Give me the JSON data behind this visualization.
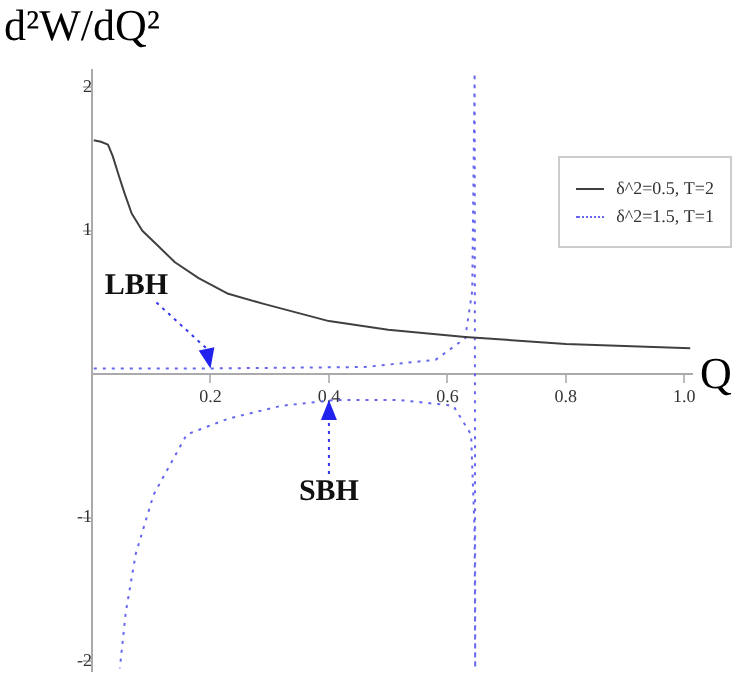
{
  "chart_data": {
    "type": "line",
    "ylabel": "d²W/dQ²",
    "xlabel": "Q",
    "xlim": [
      0,
      1.013
    ],
    "ylim": [
      -2.07,
      2.12
    ],
    "xticks": [
      0.2,
      0.4,
      0.6,
      0.8,
      {
        "value": 1,
        "label": "1.0"
      }
    ],
    "yticks": [
      -2,
      -1,
      1,
      2
    ],
    "grid": false,
    "legend": "top right",
    "marker": "none",
    "series": [
      {
        "name": "δ^2=0.5, T=2",
        "color": "#404040",
        "line_style": "solid",
        "x": [
          0.003,
          0.015,
          0.027,
          0.035,
          0.044,
          0.055,
          0.067,
          0.085,
          0.11,
          0.14,
          0.18,
          0.23,
          0.29,
          0.4,
          0.5,
          0.63,
          0.8,
          1.01
        ],
        "values": [
          1.63,
          1.62,
          1.6,
          1.52,
          1.4,
          1.26,
          1.12,
          1.0,
          0.9,
          0.78,
          0.67,
          0.56,
          0.49,
          0.37,
          0.31,
          0.26,
          0.21,
          0.18
        ]
      },
      {
        "name": "δ^2=1.5, T=1",
        "color": "#6666ee",
        "line_style": "dotted",
        "x": [
          0.003,
          0.2,
          0.46,
          0.58,
          0.63,
          0.642,
          0.646,
          0.647,
          0.646,
          0.64,
          0.61,
          0.52,
          0.41,
          0.32,
          0.23,
          0.16,
          0.104,
          0.074,
          0.057,
          0.047
        ],
        "values": [
          0.04,
          0.04,
          0.05,
          0.1,
          0.25,
          0.58,
          2.1,
          -2.05,
          -1.1,
          -0.42,
          -0.22,
          -0.18,
          -0.18,
          -0.22,
          -0.31,
          -0.42,
          -0.84,
          -1.25,
          -1.66,
          -2.05
        ]
      }
    ],
    "annotations": [
      {
        "text": "LBH",
        "x": 0.2,
        "y": 0.04
      },
      {
        "text": "SBH",
        "x": 0.4,
        "y": -0.18
      }
    ]
  }
}
